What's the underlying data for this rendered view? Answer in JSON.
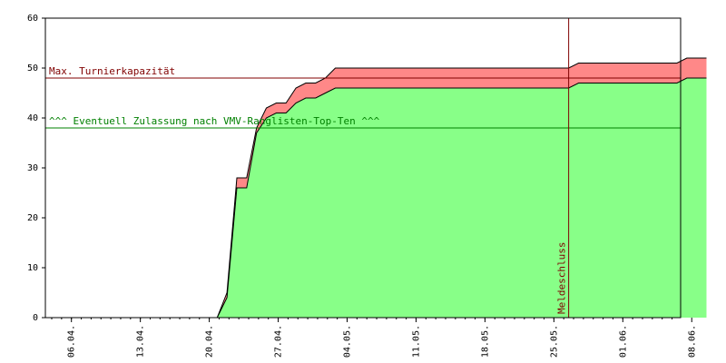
{
  "chart_data": {
    "type": "area",
    "ylim": [
      0,
      60
    ],
    "yticks": [
      0,
      10,
      20,
      30,
      40,
      50,
      60
    ],
    "xlim": [
      0,
      68
    ],
    "xticks": [
      {
        "day": 2,
        "label": "06.04."
      },
      {
        "day": 9,
        "label": "13.04."
      },
      {
        "day": 16,
        "label": "20.04."
      },
      {
        "day": 23,
        "label": "27.04."
      },
      {
        "day": 30,
        "label": "04.05."
      },
      {
        "day": 37,
        "label": "11.05."
      },
      {
        "day": 44,
        "label": "18.05."
      },
      {
        "day": 51,
        "label": "25.05."
      },
      {
        "day": 58,
        "label": "01.06."
      },
      {
        "day": 65,
        "label": "08.06."
      }
    ],
    "series": [
      {
        "key": "total",
        "color": "#ff8888",
        "points": [
          [
            0,
            0
          ],
          [
            16.8,
            0
          ],
          [
            17.8,
            5
          ],
          [
            18.8,
            28
          ],
          [
            19.8,
            28
          ],
          [
            20.8,
            38
          ],
          [
            21.8,
            42
          ],
          [
            22.8,
            43
          ],
          [
            23.8,
            43
          ],
          [
            24.8,
            46
          ],
          [
            25.8,
            47
          ],
          [
            26.8,
            47
          ],
          [
            27.8,
            48
          ],
          [
            28.8,
            50
          ],
          [
            31,
            50
          ],
          [
            52.5,
            50
          ],
          [
            53.5,
            51
          ],
          [
            63.5,
            51
          ],
          [
            64.5,
            52
          ],
          [
            66.5,
            52
          ]
        ]
      },
      {
        "key": "confirmed",
        "color": "#88ff88",
        "points": [
          [
            0,
            0
          ],
          [
            16.8,
            0
          ],
          [
            17.8,
            4
          ],
          [
            18.8,
            26
          ],
          [
            19.8,
            26
          ],
          [
            20.8,
            37
          ],
          [
            21.8,
            40
          ],
          [
            22.8,
            41
          ],
          [
            23.8,
            41
          ],
          [
            24.8,
            43
          ],
          [
            25.8,
            44
          ],
          [
            26.8,
            44
          ],
          [
            27.8,
            45
          ],
          [
            28.8,
            46
          ],
          [
            31,
            46
          ],
          [
            52.5,
            46
          ],
          [
            53.5,
            47
          ],
          [
            63.5,
            47
          ],
          [
            64.5,
            48
          ],
          [
            66.5,
            48
          ]
        ]
      }
    ],
    "reference_lines": [
      {
        "y": 48,
        "label": "Max. Turnierkapazität",
        "color": "#800000"
      },
      {
        "y": 38,
        "label": "^^^ Eventuell Zulassung nach VMV-Ranglisten-Top-Ten ^^^",
        "color": "#008000"
      }
    ],
    "vertical_marker": {
      "day": 52.5,
      "label": "Meldeschluss",
      "color": "#800000"
    },
    "grid": false,
    "legend": "none"
  }
}
